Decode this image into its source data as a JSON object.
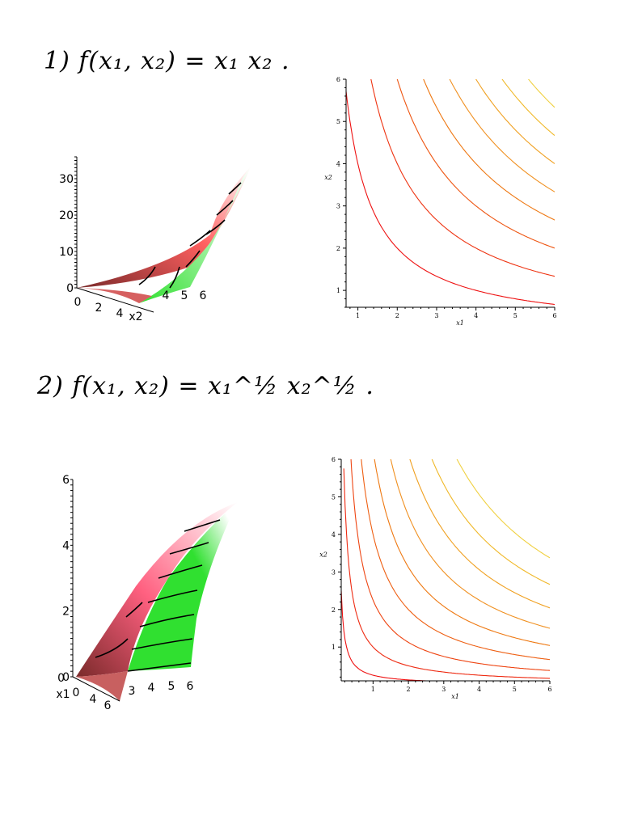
{
  "headings": {
    "problem1": "1) f(x₁, x₂) = x₁ x₂ .",
    "problem2": "2) f(x₁, x₂) = x₁^½ x₂^½ ."
  },
  "chart_data": [
    {
      "type": "surface",
      "function": "x1*x2",
      "z_ticks": [
        "0",
        "10",
        "20",
        "30"
      ],
      "zlim": [
        0,
        36
      ],
      "x1_ticks": [
        "0",
        "2",
        "4",
        "x2"
      ],
      "x2_ticks": [
        "4",
        "5",
        "6"
      ],
      "gradient_colors": [
        "#7a2a2a",
        "#ff6060",
        "#ffffff",
        "#30e030"
      ]
    },
    {
      "type": "contour",
      "function": "x1*x2",
      "xlabel": "x1",
      "ylabel": "x2",
      "xlim": [
        0.7,
        6
      ],
      "ylim": [
        0.6,
        6
      ],
      "x_ticks": [
        "1",
        "2",
        "3",
        "4",
        "5",
        "6"
      ],
      "y_ticks": [
        "1",
        "2",
        "3",
        "4",
        "5",
        "6"
      ],
      "levels": [
        4,
        8,
        12,
        16,
        20,
        24,
        28,
        32
      ],
      "colors": [
        "#ee1111",
        "#ee3311",
        "#ee5511",
        "#ee7711",
        "#f09020",
        "#f0a020",
        "#f0b828",
        "#f0d040"
      ]
    },
    {
      "type": "surface",
      "function": "x1^(1/2)*x2^(1/2)",
      "z_ticks": [
        "0",
        "2",
        "4",
        "6"
      ],
      "zlim": [
        0,
        6
      ],
      "x1_ticks": [
        "x1",
        "0",
        "4",
        "6"
      ],
      "x2_ticks": [
        "3",
        "4",
        "5",
        "6"
      ],
      "corner_label": "0",
      "gradient_colors": [
        "#7a2a2a",
        "#ff6080",
        "#ffffff",
        "#30e030"
      ]
    },
    {
      "type": "contour",
      "function": "x1^(1/2)*x2^(1/2)",
      "xlabel": "x1",
      "ylabel": "x2",
      "xlim": [
        0.1,
        6
      ],
      "ylim": [
        0.1,
        6
      ],
      "x_ticks": [
        "1",
        "2",
        "3",
        "4",
        "5",
        "6"
      ],
      "y_ticks": [
        "1",
        "2",
        "3",
        "4",
        "5",
        "6"
      ],
      "levels": [
        0.5,
        1.0,
        1.5,
        2.0,
        2.5,
        3.0,
        3.5,
        4.0,
        4.5
      ],
      "colors": [
        "#ee1111",
        "#ee2a11",
        "#ee4411",
        "#ee5e11",
        "#ee7811",
        "#f09020",
        "#f0a020",
        "#f0b828",
        "#f0d040"
      ]
    }
  ]
}
